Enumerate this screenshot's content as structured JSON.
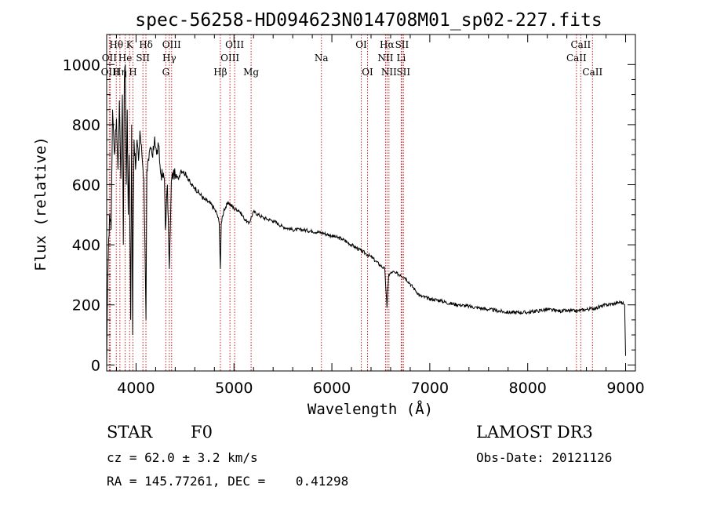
{
  "chart_data": {
    "type": "line",
    "title": "spec-56258-HD094623N014708M01_sp02-227.fits",
    "xlabel": "Wavelength (Å)",
    "ylabel": "Flux (relative)",
    "xlim": [
      3700,
      9100
    ],
    "ylim": [
      -20,
      1100
    ],
    "xticks": [
      4000,
      5000,
      6000,
      7000,
      8000,
      9000
    ],
    "yticks": [
      0,
      200,
      400,
      600,
      800,
      1000
    ],
    "grid": false,
    "series": [
      {
        "name": "Flux",
        "x": [
          3700,
          3705,
          3715,
          3730,
          3745,
          3760,
          3780,
          3800,
          3815,
          3830,
          3845,
          3860,
          3870,
          3880,
          3890,
          3900,
          3910,
          3920,
          3930,
          3945,
          3955,
          3965,
          3970,
          3980,
          3995,
          4010,
          4025,
          4040,
          4060,
          4080,
          4095,
          4101,
          4110,
          4130,
          4150,
          4170,
          4190,
          4210,
          4230,
          4250,
          4270,
          4290,
          4300,
          4320,
          4340,
          4350,
          4360,
          4380,
          4400,
          4430,
          4460,
          4490,
          4520,
          4560,
          4600,
          4650,
          4700,
          4750,
          4800,
          4830,
          4850,
          4861,
          4870,
          4900,
          4950,
          5000,
          5050,
          5100,
          5150,
          5200,
          5300,
          5400,
          5500,
          5600,
          5700,
          5800,
          5900,
          6000,
          6100,
          6200,
          6300,
          6350,
          6400,
          6450,
          6500,
          6540,
          6563,
          6580,
          6620,
          6650,
          6700,
          6750,
          6800,
          6850,
          6900,
          7000,
          7100,
          7200,
          7300,
          7400,
          7500,
          7600,
          7700,
          7800,
          7900,
          8000,
          8100,
          8200,
          8300,
          8400,
          8500,
          8600,
          8700,
          8800,
          8900,
          8950,
          8990,
          9000
        ],
        "y": [
          0,
          150,
          350,
          500,
          450,
          850,
          700,
          820,
          650,
          880,
          620,
          900,
          400,
          950,
          1000,
          600,
          850,
          500,
          700,
          150,
          800,
          100,
          420,
          750,
          650,
          750,
          680,
          780,
          700,
          620,
          300,
          150,
          650,
          680,
          720,
          690,
          760,
          700,
          730,
          640,
          630,
          620,
          450,
          600,
          320,
          450,
          610,
          640,
          630,
          620,
          650,
          640,
          630,
          600,
          590,
          570,
          550,
          540,
          520,
          500,
          470,
          320,
          470,
          520,
          540,
          520,
          515,
          490,
          470,
          510,
          490,
          480,
          460,
          450,
          450,
          445,
          440,
          430,
          420,
          400,
          380,
          370,
          360,
          345,
          330,
          320,
          190,
          300,
          310,
          305,
          300,
          290,
          270,
          250,
          230,
          220,
          215,
          205,
          200,
          195,
          190,
          185,
          180,
          175,
          175,
          175,
          180,
          185,
          180,
          180,
          180,
          185,
          190,
          200,
          205,
          210,
          200,
          30
        ]
      }
    ],
    "annotations": [
      {
        "label": "Hθ",
        "x": 3798,
        "row": 1
      },
      {
        "label": "OII",
        "x": 3727,
        "row": 2
      },
      {
        "label": "OIII",
        "x": 3737,
        "row": 3
      },
      {
        "label": "He",
        "x": 3889,
        "row": 2
      },
      {
        "label": "Hη",
        "x": 3835,
        "row": 3
      },
      {
        "label": "K",
        "x": 3934,
        "row": 1
      },
      {
        "label": "SII",
        "x": 4070,
        "row": 2
      },
      {
        "label": "H",
        "x": 3968,
        "row": 3
      },
      {
        "label": "Hδ",
        "x": 4101,
        "row": 1
      },
      {
        "label": "OIII",
        "x": 4363,
        "row": 1
      },
      {
        "label": "Hγ",
        "x": 4340,
        "row": 2
      },
      {
        "label": "G",
        "x": 4304,
        "row": 3
      },
      {
        "label": "OIII",
        "x": 5007,
        "row": 1
      },
      {
        "label": "OIII",
        "x": 4959,
        "row": 2
      },
      {
        "label": "Hβ",
        "x": 4861,
        "row": 3
      },
      {
        "label": "Mg",
        "x": 5175,
        "row": 3
      },
      {
        "label": "Na",
        "x": 5893,
        "row": 2
      },
      {
        "label": "OI",
        "x": 6300,
        "row": 1
      },
      {
        "label": "OI",
        "x": 6364,
        "row": 3
      },
      {
        "label": "Hα",
        "x": 6563,
        "row": 1
      },
      {
        "label": "SII",
        "x": 6716,
        "row": 1
      },
      {
        "label": "NII",
        "x": 6548,
        "row": 2
      },
      {
        "label": "Li",
        "x": 6708,
        "row": 2
      },
      {
        "label": "NII",
        "x": 6583,
        "row": 3
      },
      {
        "label": "SII",
        "x": 6731,
        "row": 3
      },
      {
        "label": "CaII",
        "x": 8542,
        "row": 1
      },
      {
        "label": "CaII",
        "x": 8498,
        "row": 2
      },
      {
        "label": "CaII",
        "x": 8662,
        "row": 3
      }
    ]
  },
  "info": {
    "object_class": "STAR",
    "subclass": "F0",
    "survey": "LAMOST DR3",
    "redshift_text": "cz = 62.0 ± 3.2 km/s",
    "obs_date_text": "Obs-Date: 20121126",
    "coords_text": "RA = 145.77261, DEC =    0.41298"
  }
}
